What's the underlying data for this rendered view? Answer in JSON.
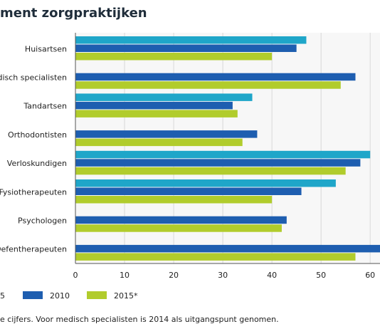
{
  "title": "ment zorgpraktijken",
  "chart_data": {
    "type": "bar",
    "orientation": "horizontal",
    "categories": [
      "Huisartsen",
      "disch specialisten",
      "Tandartsen",
      "Orthodontisten",
      "Verloskundigen",
      "Fysiotherapeuten",
      "Psychologen",
      "Oefentherapeuten"
    ],
    "series": [
      {
        "name": "5",
        "color": "#1fa6c9",
        "values": [
          47,
          null,
          36,
          null,
          60,
          53,
          null,
          null
        ]
      },
      {
        "name": "2010",
        "color": "#1e5eb0",
        "values": [
          45,
          57,
          32,
          37,
          58,
          46,
          43,
          62
        ]
      },
      {
        "name": "2015*",
        "color": "#b1cc2c",
        "values": [
          40,
          54,
          33,
          34,
          55,
          40,
          42,
          57
        ]
      }
    ],
    "x_ticks": [
      "0",
      "10",
      "20",
      "30",
      "40",
      "50",
      "60"
    ],
    "xlim": [
      0,
      62
    ],
    "grid": "vertical",
    "legend_position": "bottom"
  },
  "footnote": "e cijfers. Voor medisch specialisten is 2014 als uitgangspunt genomen."
}
